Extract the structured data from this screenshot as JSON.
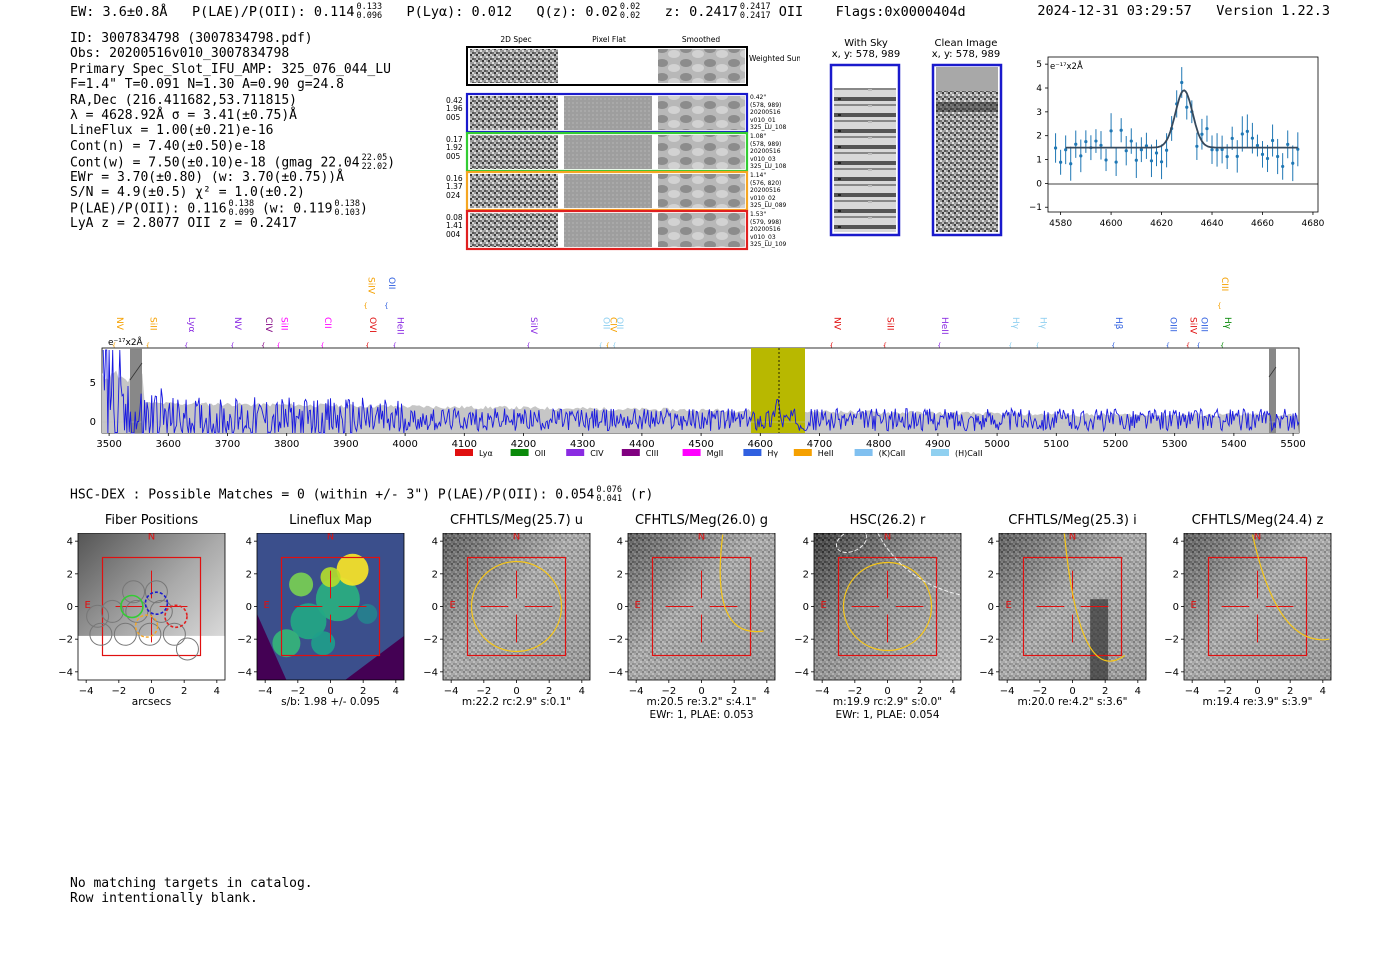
{
  "header": {
    "ew": "EW: 3.6±0.8Å",
    "plae_label": "P(LAE)/P(OII): 0.114",
    "plae_hi": "0.133",
    "plae_lo": "0.096",
    "plya": "P(Lyα): 0.012",
    "qz_label": "Q(z): 0.02",
    "qz_hi": "0.02",
    "qz_lo": "0.02",
    "z_label": "z: 0.2417",
    "z_hi": "0.2417",
    "z_lo": "0.2417",
    "z_line": "OII",
    "flags": "Flags:0x0000404d",
    "timestamp": "2024-12-31 03:29:57",
    "version": "Version 1.22.3"
  },
  "info": {
    "id": "ID: 3007834798 (3007834798.pdf)",
    "obs": "Obs: 20200516v010_3007834798",
    "primary": "Primary Spec_Slot_IFU_AMP: 325_076_044_LU",
    "fit": "F=1.4\"  T=0.091  N=1.30  A=0.90  g=24.8",
    "radec": "RA,Dec (216.411682,53.711815)",
    "lambda": "λ = 4628.92Å   σ = 3.41(±0.75)Å",
    "lineflux": "LineFlux = 1.00(±0.21)e-16",
    "cont_n": "Cont(n) = 7.40(±0.50)e-18",
    "cont_w": "Cont(w) = 7.50(±0.10)e-18 (gmag 22.04",
    "gmag_hi": "22.05",
    "gmag_lo": "22.02",
    "ewr": "EWr = 3.70(±0.80) (w: 3.70(±0.75))Å",
    "sn": "S/N = 4.9(±0.5)  χ² = 1.0(±0.2)",
    "plae_label": "P(LAE)/P(OII): 0.116",
    "plae_hi": "0.138",
    "plae_lo": "0.099",
    "plae_w": "(w: 0.119",
    "plae_w_hi": "0.138",
    "plae_w_lo": "0.103",
    "lya_z": "LyA z = 2.8077   OII z = 0.2417"
  },
  "cutouts": {
    "col_titles": [
      "2D Spec",
      "Pixel Flat",
      "Smoothed"
    ],
    "weighted_sum": "Weighted Sum",
    "rows": [
      {
        "n1": "0.42",
        "n2": "1.96",
        "n3": "005",
        "sep": "0.42\"",
        "xy": "(578, 989)",
        "date": "20200516",
        "shot": "v010_01",
        "ifu": "325_LU_108",
        "color": "#1a1acc"
      },
      {
        "n1": "0.17",
        "n2": "1.92",
        "n3": "005",
        "sep": "1.08\"",
        "xy": "(578, 989)",
        "date": "20200516",
        "shot": "v010_03",
        "ifu": "325_LU_108",
        "color": "#33cc33"
      },
      {
        "n1": "0.16",
        "n2": "1.37",
        "n3": "024",
        "sep": "1.14\"",
        "xy": "(576, 820)",
        "date": "20200516",
        "shot": "v010_02",
        "ifu": "325_LU_089",
        "color": "#f5a623"
      },
      {
        "n1": "0.08",
        "n2": "1.41",
        "n3": "004",
        "sep": "1.53\"",
        "xy": "(579, 998)",
        "date": "20200516",
        "shot": "v010_03",
        "ifu": "325_LU_109",
        "color": "#e02020"
      }
    ]
  },
  "ccd": {
    "with_sky": "With Sky",
    "clean": "Clean Image",
    "xy": "x, y: 578, 989"
  },
  "zoom_plot": {
    "unit": "e⁻¹⁷x2Å",
    "x_ticks": [
      "4580",
      "4600",
      "4620",
      "4640",
      "4660",
      "4680"
    ],
    "y_ticks": [
      "5",
      "4",
      "3",
      "2",
      "1",
      "0",
      "−1"
    ]
  },
  "full_spectrum": {
    "unit": "e⁻¹⁷x2Å",
    "y_ticks": [
      "5",
      "0"
    ],
    "x_ticks": [
      "3500",
      "3600",
      "3700",
      "3800",
      "3900",
      "4000",
      "4100",
      "4200",
      "4300",
      "4400",
      "4500",
      "4600",
      "4700",
      "4800",
      "4900",
      "5000",
      "5100",
      "5200",
      "5300",
      "5400",
      "5500"
    ],
    "legend": [
      {
        "name": "Lyα",
        "color": "#e01010"
      },
      {
        "name": "OII",
        "color": "#0a8a0a"
      },
      {
        "name": "CIV",
        "color": "#8a2be2"
      },
      {
        "name": "CIII",
        "color": "#800080"
      },
      {
        "name": "MgII",
        "color": "#ff00ff"
      },
      {
        "name": "Hγ",
        "color": "#3060e0"
      },
      {
        "name": "HeII",
        "color": "#f5a000"
      },
      {
        "name": "(K)CaII",
        "color": "#80c0f0"
      },
      {
        "name": "(H)CaII",
        "color": "#90d0f0"
      }
    ],
    "lines": [
      {
        "name": "NV",
        "wave": 3508,
        "color": "#f5a000",
        "row": 0
      },
      {
        "name": "SiII",
        "wave": 3565,
        "color": "#f5a000",
        "row": 0
      },
      {
        "name": "Lyα",
        "wave": 3630,
        "color": "#8a2be2",
        "row": 0
      },
      {
        "name": "NV",
        "wave": 3708,
        "color": "#8a2be2",
        "row": 0
      },
      {
        "name": "CIV",
        "wave": 3760,
        "color": "#800080",
        "row": 0
      },
      {
        "name": "SiII",
        "wave": 3786,
        "color": "#ff00ff",
        "row": 0
      },
      {
        "name": "CII",
        "wave": 3860,
        "color": "#ff00ff",
        "row": 0
      },
      {
        "name": "SiIV",
        "wave": 3933,
        "color": "#f5a000",
        "row": 1
      },
      {
        "name": "OVI",
        "wave": 3936,
        "color": "#e01010",
        "row": 0
      },
      {
        "name": "OII",
        "wave": 3968,
        "color": "#3060e0",
        "row": 1
      },
      {
        "name": "HeII",
        "wave": 3982,
        "color": "#8a2be2",
        "row": 0
      },
      {
        "name": "SiIV",
        "wave": 4208,
        "color": "#8a2be2",
        "row": 0
      },
      {
        "name": "OII",
        "wave": 4330,
        "color": "#90d0f0",
        "row": 0
      },
      {
        "name": "CIV",
        "wave": 4342,
        "color": "#f5a000",
        "row": 0
      },
      {
        "name": "OII",
        "wave": 4353,
        "color": "#90d0f0",
        "row": 0
      },
      {
        "name": "NV",
        "wave": 4720,
        "color": "#e01010",
        "row": 0
      },
      {
        "name": "SiII",
        "wave": 4810,
        "color": "#e01010",
        "row": 0
      },
      {
        "name": "HeII",
        "wave": 4902,
        "color": "#8a2be2",
        "row": 0
      },
      {
        "name": "Hγ",
        "wave": 5022,
        "color": "#90d0f0",
        "row": 0
      },
      {
        "name": "Hγ",
        "wave": 5068,
        "color": "#90d0f0",
        "row": 0
      },
      {
        "name": "Hβ",
        "wave": 5196,
        "color": "#3060e0",
        "row": 0
      },
      {
        "name": "OIII",
        "wave": 5288,
        "color": "#3060e0",
        "row": 0
      },
      {
        "name": "SiIV",
        "wave": 5322,
        "color": "#e01010",
        "row": 0
      },
      {
        "name": "OIII",
        "wave": 5340,
        "color": "#3060e0",
        "row": 0
      },
      {
        "name": "Hγ",
        "wave": 5380,
        "color": "#0a8a0a",
        "row": 0
      },
      {
        "name": "CIII",
        "wave": 5375,
        "color": "#f5a000",
        "row": 1
      }
    ]
  },
  "hsc": {
    "title": "HSC-DEX : Possible Matches = 0 (within +/- 3\")  P(LAE)/P(OII): 0.054",
    "hi": "0.076",
    "lo": "0.041",
    "band": "(r)"
  },
  "panels": [
    {
      "title": "Fiber Positions",
      "cap1": "arcsecs",
      "cap2": "",
      "type": "fiber"
    },
    {
      "title": "Lineflux Map",
      "cap1": "s/b: 1.98 +/- 0.095",
      "cap2": "",
      "type": "flux"
    },
    {
      "title": "CFHTLS/Meg(25.7) u",
      "cap1": "m:22.2 rc:2.9\"  s:0.1\"",
      "cap2": "",
      "type": "img"
    },
    {
      "title": "CFHTLS/Meg(26.0) g",
      "cap1": "m:20.5  re:3.2\"  s:4.1\"",
      "cap2": "EWr: 1, PLAE: 0.053",
      "type": "img"
    },
    {
      "title": "HSC(26.2) r",
      "cap1": "m:19.9 rc:2.9\"  s:0.0\"",
      "cap2": "EWr: 1, PLAE: 0.054",
      "type": "img"
    },
    {
      "title": "CFHTLS/Meg(25.3) i",
      "cap1": "m:20.0  re:4.2\"  s:3.6\"",
      "cap2": "",
      "type": "img"
    },
    {
      "title": "CFHTLS/Meg(24.4) z",
      "cap1": "m:19.4  re:3.9\"  s:3.9\"",
      "cap2": "",
      "type": "img"
    }
  ],
  "panel_axes": {
    "y_ticks": [
      "4",
      "2",
      "0",
      "−2",
      "−4"
    ],
    "x_ticks": [
      "−4",
      "−2",
      "0",
      "2",
      "4"
    ],
    "north": "N",
    "east": "E"
  },
  "footer": {
    "line1": "No matching targets in catalog.",
    "line2": "Row intentionally blank."
  }
}
